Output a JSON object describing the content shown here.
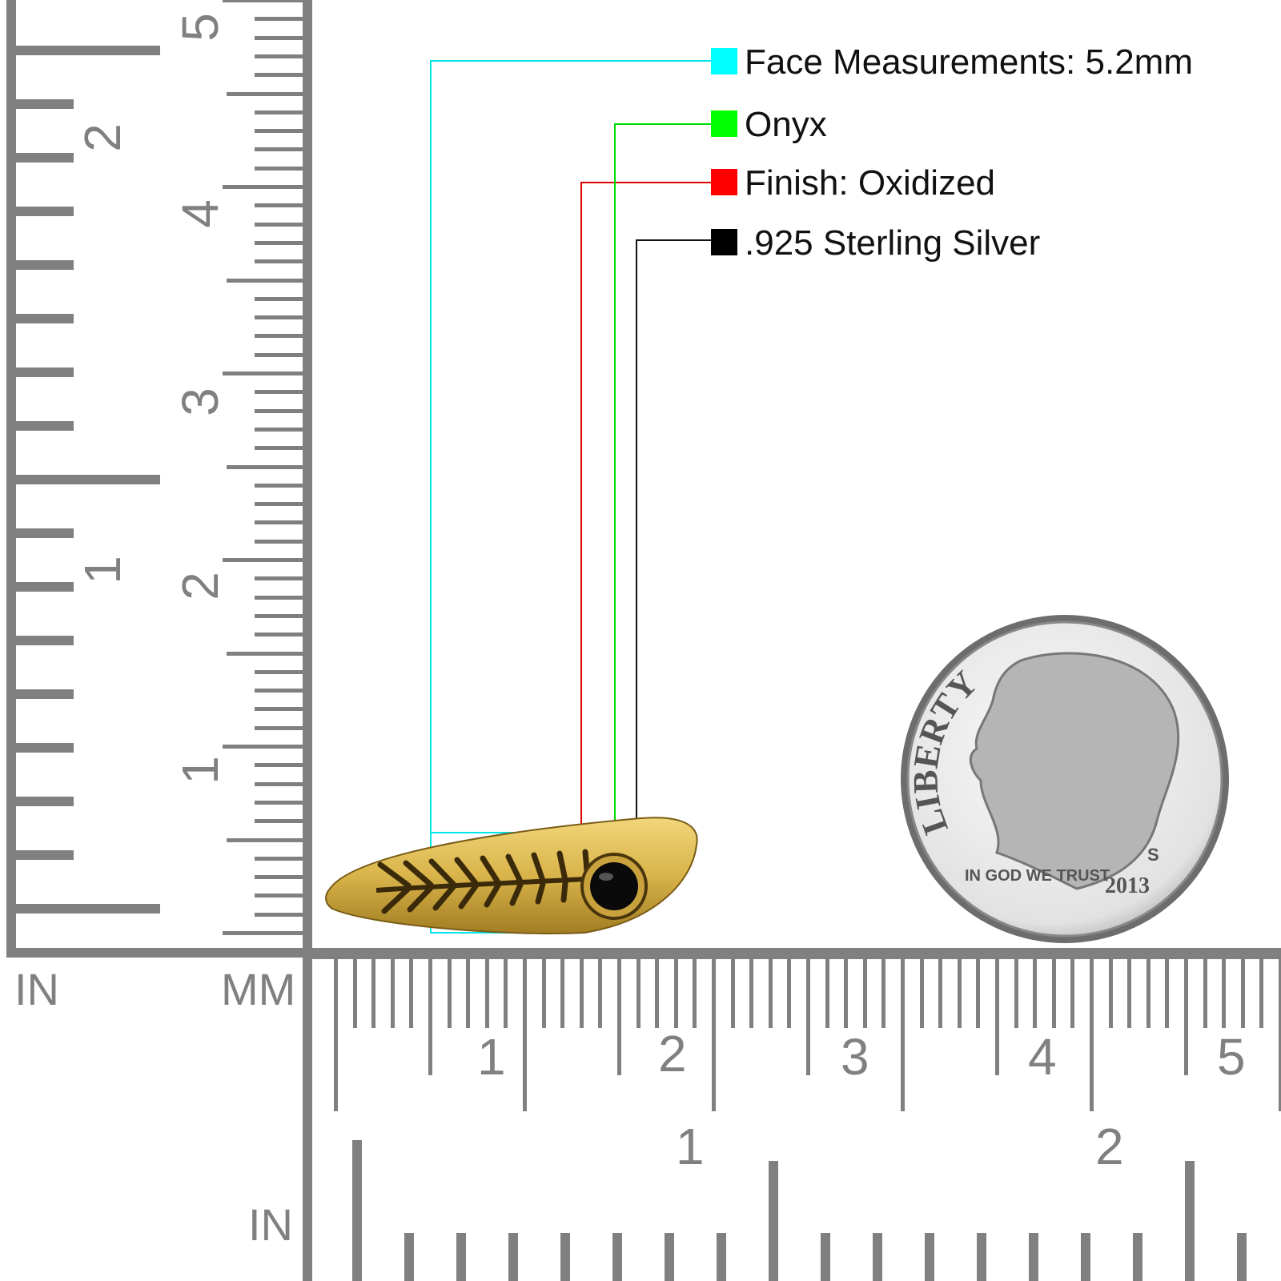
{
  "legend": [
    {
      "label": "Face Measurements: 5.2mm",
      "color": "#00ffff"
    },
    {
      "label": "Onyx",
      "color": "#00ff00"
    },
    {
      "label": "Finish: Oxidized",
      "color": "#ff0000"
    },
    {
      "label": ".925 Sterling Silver",
      "color": "#000000"
    }
  ],
  "rulers": {
    "left_inch_label": "IN",
    "left_mm_label": "MM",
    "bottom_inch_label": "IN",
    "vertical_inch_numbers": [
      "1",
      "2"
    ],
    "vertical_cm_numbers": [
      "1",
      "2",
      "3",
      "4",
      "5"
    ],
    "horizontal_cm_numbers": [
      "1",
      "2",
      "3",
      "4",
      "5"
    ],
    "horizontal_inch_numbers": [
      "1",
      "2"
    ],
    "color": "#808080"
  },
  "coin": {
    "legend_text": "LIBERTY",
    "motto": "IN GOD WE TRUST",
    "year": "2013",
    "mint_mark": "S"
  },
  "product": {
    "metal_color": "#d9b44a",
    "stone_color": "#0a0a0a"
  }
}
